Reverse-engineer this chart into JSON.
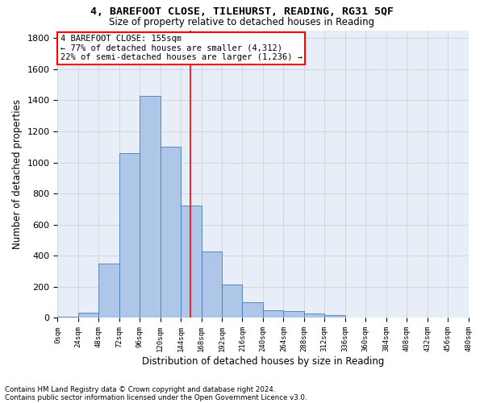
{
  "title": "4, BAREFOOT CLOSE, TILEHURST, READING, RG31 5QF",
  "subtitle": "Size of property relative to detached houses in Reading",
  "xlabel": "Distribution of detached houses by size in Reading",
  "ylabel": "Number of detached properties",
  "bin_edges": [
    0,
    24,
    48,
    72,
    96,
    120,
    144,
    168,
    192,
    216,
    240,
    264,
    288,
    312,
    336,
    360,
    384,
    408,
    432,
    456,
    480
  ],
  "bar_heights": [
    10,
    35,
    350,
    1060,
    1430,
    1100,
    725,
    430,
    215,
    100,
    50,
    45,
    30,
    20,
    5,
    5,
    5,
    2,
    0,
    0
  ],
  "bar_color": "#aec6e8",
  "bar_edge_color": "#4a7ab5",
  "property_line_x": 155,
  "property_line_color": "red",
  "annotation_title": "4 BAREFOOT CLOSE: 155sqm",
  "annotation_line1": "← 77% of detached houses are smaller (4,312)",
  "annotation_line2": "22% of semi-detached houses are larger (1,236) →",
  "annotation_box_color": "white",
  "annotation_box_edge_color": "red",
  "ylim": [
    0,
    1850
  ],
  "xlim": [
    0,
    480
  ],
  "grid_color": "#cccccc",
  "bg_color": "#e8eef8",
  "footnote1": "Contains HM Land Registry data © Crown copyright and database right 2024.",
  "footnote2": "Contains public sector information licensed under the Open Government Licence v3.0.",
  "tick_labels": [
    "0sqm",
    "24sqm",
    "48sqm",
    "72sqm",
    "96sqm",
    "120sqm",
    "144sqm",
    "168sqm",
    "192sqm",
    "216sqm",
    "240sqm",
    "264sqm",
    "288sqm",
    "312sqm",
    "336sqm",
    "360sqm",
    "384sqm",
    "408sqm",
    "432sqm",
    "456sqm",
    "480sqm"
  ],
  "ytick_labels": [
    "0",
    "200",
    "400",
    "600",
    "800",
    "1000",
    "1200",
    "1400",
    "1600",
    "1800"
  ],
  "ytick_values": [
    0,
    200,
    400,
    600,
    800,
    1000,
    1200,
    1400,
    1600,
    1800
  ]
}
